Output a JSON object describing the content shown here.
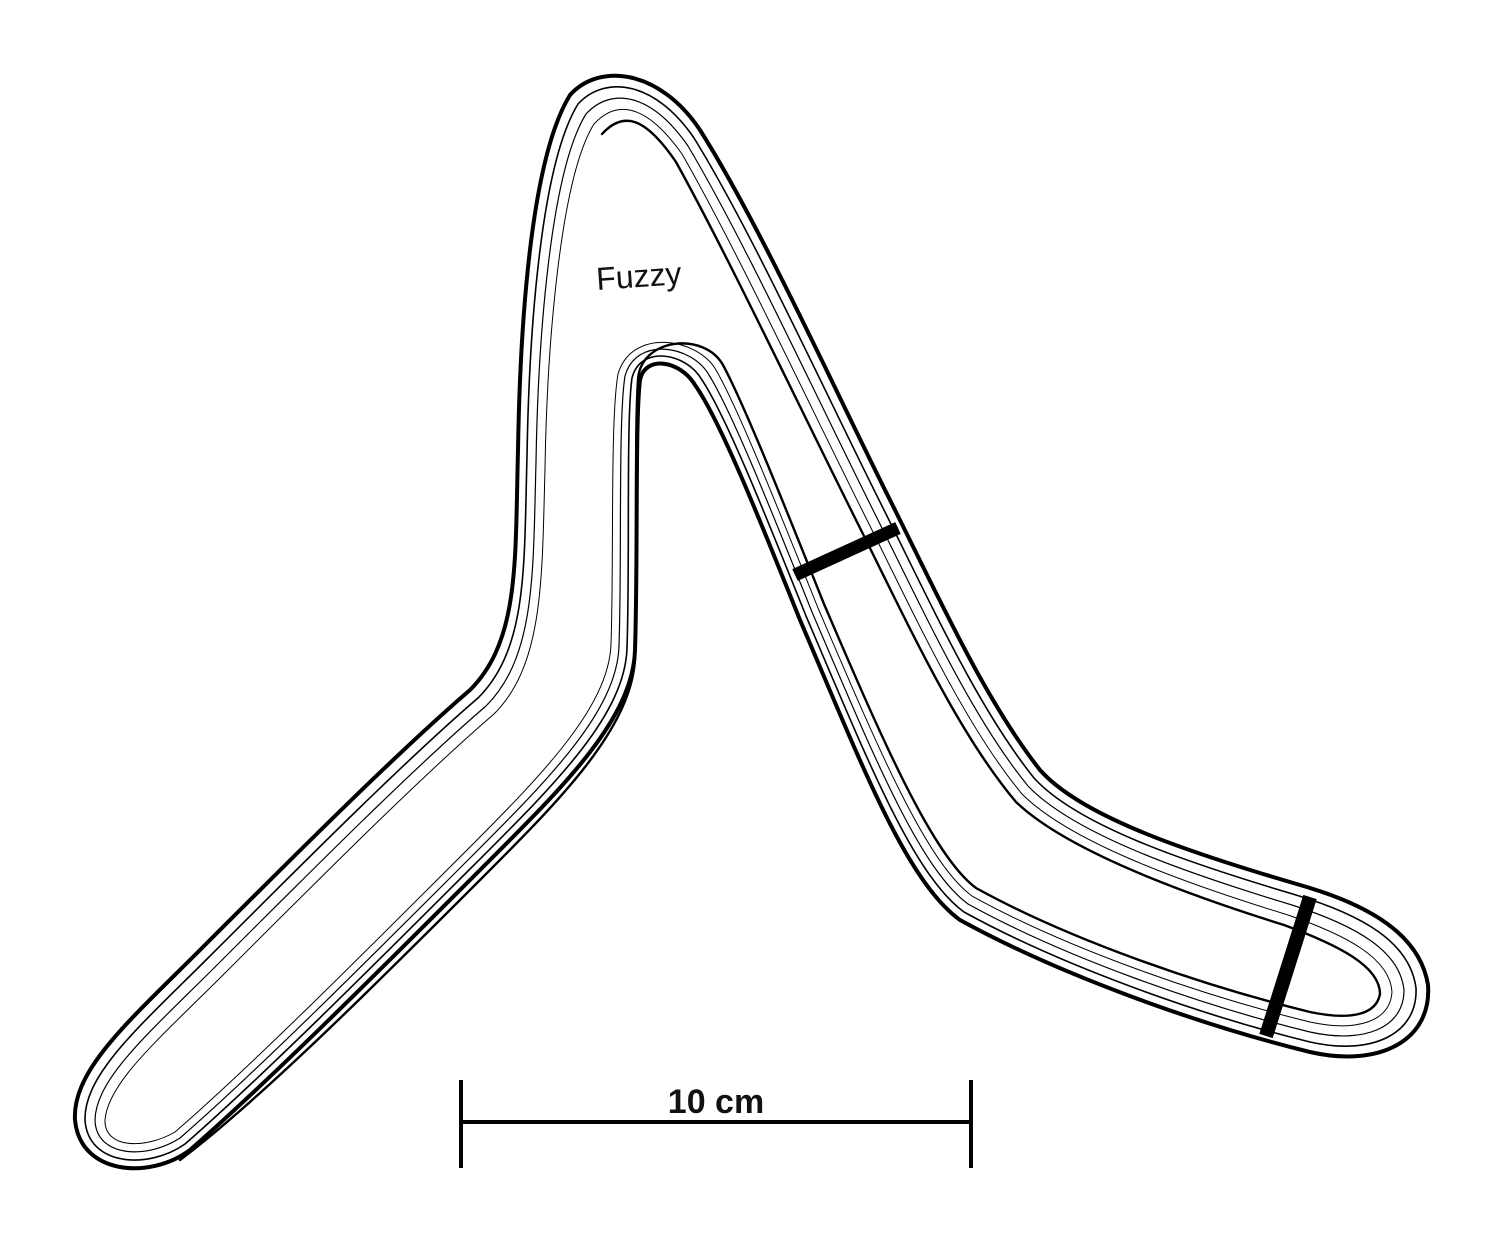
{
  "diagram": {
    "boomerang_label": "Fuzzy",
    "scale_bar": {
      "label": "10 cm",
      "length_cm": 10
    },
    "colors": {
      "line": "#000000",
      "background": "#ffffff"
    }
  }
}
